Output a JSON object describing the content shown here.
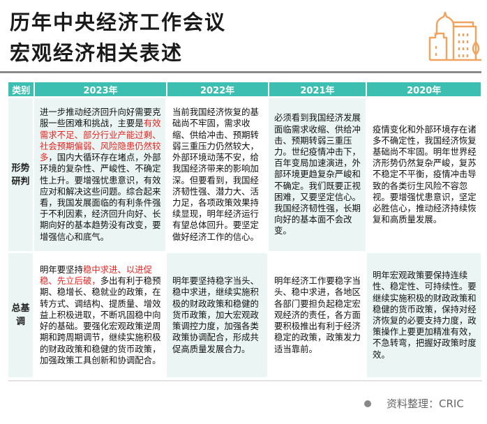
{
  "title": {
    "line1": "历年中央经济工作会议",
    "line2": "宏观经济相关表述"
  },
  "logo_icon": "city-buildings-icon",
  "accent_color": "#3cbfb1",
  "highlight_color": "#e8231f",
  "table": {
    "headers": [
      "类别",
      "2023年",
      "2022年",
      "2021年",
      "2020年"
    ],
    "rows": [
      {
        "category": "形势\n研判",
        "cells": {
          "y2023": {
            "pre": "进一步推动经济回升向好需要克服一些困难和挑战，主要是",
            "highlight": "有效需求不足、部分行业产能过剩、社会预期偏弱、风险隐患仍然较多",
            "post": "，国内大循环存在堵点，外部环境的复杂性、严峻性、不确定性上升。要增强忧患意识，有效应对和解决这些问题。综合起来看，我国发展面临的有利条件强于不利因素，经济回升向好、长期向好的基本趋势没有改变，要增强信心和底气。"
          },
          "y2022": "当前我国经济恢复的基础尚不牢固，需求收缩、供给冲击、预期转弱三重压力仍然较大，外部环境动荡不安，给我国经济带来的影响加深。但要看到，我国经济韧性强、潜力大、活力足，各项政策效果持续显现，明年经济运行有望总体回升。要坚定做好经济工作的信心。",
          "y2021": "必须看到我国经济发展面临需求收缩、供给冲击、预期转弱三重压力。世纪疫情冲击下，百年变局加速演进，外部环境更趋复杂严峻和不确定。我们既要正视困难，又要坚定信心。我国经济韧性强，长期向好的基本面不会改变。",
          "y2020": "疫情变化和外部环境存在诸多不确定性，我国经济恢复基础尚不牢固。明年世界经济形势仍然复杂严峻，复苏不稳定不平衡，疫情冲击导致的各类衍生风险不容忽视。要增强忧患意识，坚定必胜信心，推动经济持续恢复和高质量发展。"
        }
      },
      {
        "category": "总基\n调",
        "cells": {
          "y2023": {
            "pre": "明年要坚持",
            "highlight": "稳中求进、以进促稳、先立后破，",
            "post": "多出有利于稳预期、稳增长、稳就业的政策，在转方式、调结构、提质量、增效益上积极进取，不断巩固稳中向好的基础。要强化宏观政策逆周期和跨周期调节，继续实施积极的财政政策和稳健的货币政策，加强政策工具创新和协调配合。"
          },
          "y2022": "明年要坚持稳字当头、稳中求进，继续实施积极的财政政策和稳健的货币政策，加大宏观政策调控力度，加强各类政策协调配合，形成共促高质量发展合力。",
          "y2021": "明年经济工作要稳字当头、稳中求进，各地区各部门要担负起稳定宏观经济的责任，各方面要积极推出有利于经济稳定的政策，政策发力适当靠前。",
          "y2020": "明年宏观政策要保持连续性、稳定性、可持续性。要继续实施积极的财政政策和稳健的货币政策，保持对经济恢复的必要支持力度，政策操作上要更加精准有效，不急转弯，把握好政策时度效。"
        }
      }
    ]
  },
  "footer": {
    "source": "资料整理：CRIC"
  }
}
